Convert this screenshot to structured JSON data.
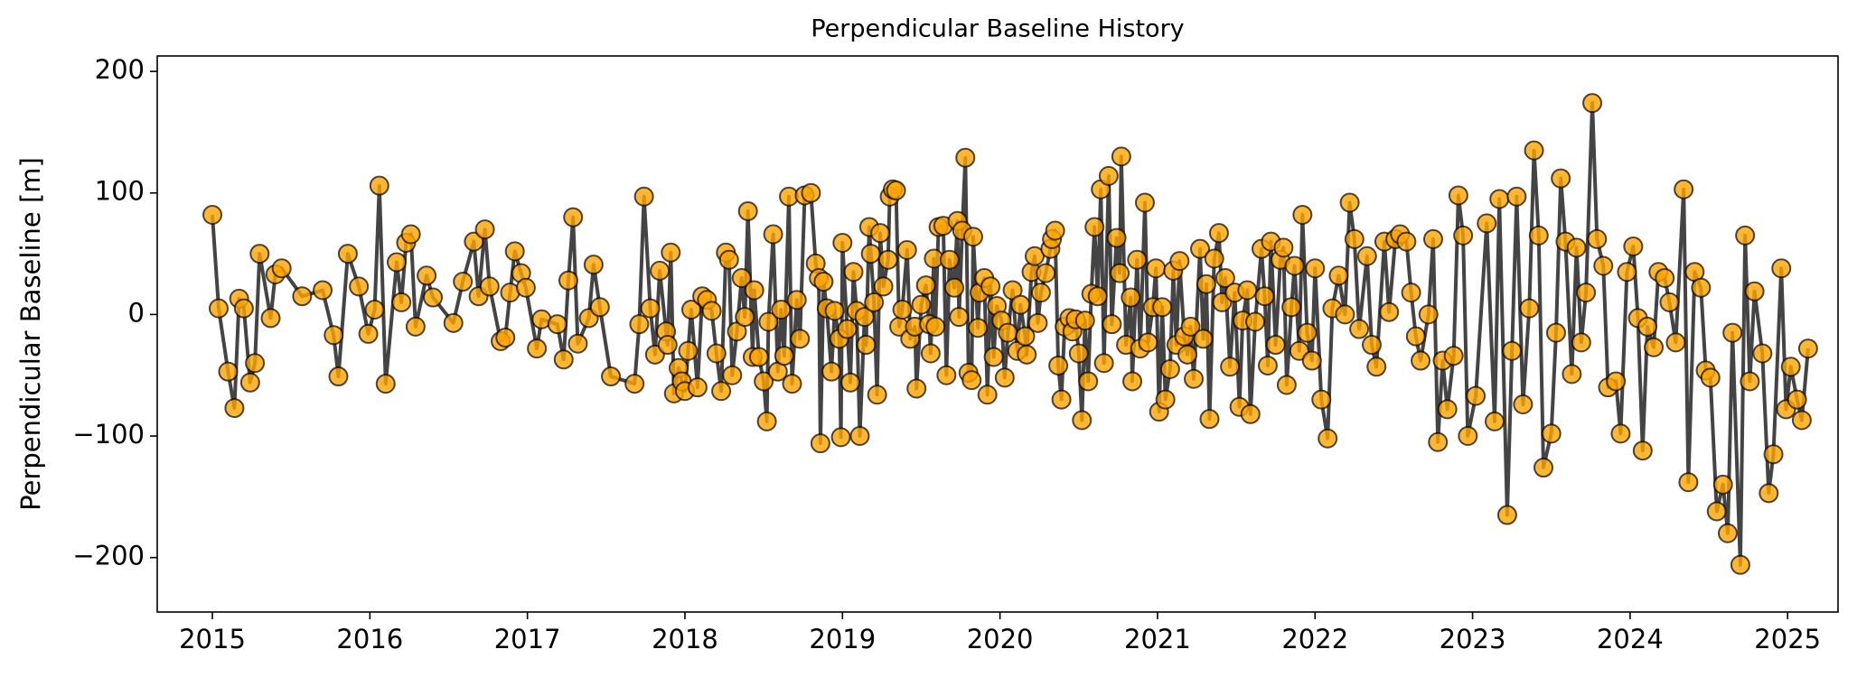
{
  "chart_data": {
    "type": "line",
    "title": "Perpendicular Baseline History",
    "y_label": "Perpendicular Baseline [m]",
    "xlim": [
      2014.65,
      2025.32
    ],
    "xticks": [
      2015,
      2016,
      2017,
      2018,
      2019,
      2020,
      2021,
      2022,
      2023,
      2024,
      2025
    ],
    "ylim": [
      -244.8,
      212.7
    ],
    "yticks": [
      {
        "value": -200,
        "label": "−200"
      },
      {
        "value": -100,
        "label": "−100"
      },
      0,
      100,
      200
    ],
    "series": [
      {
        "line_color": "#444444",
        "marker_color": "#ffa500",
        "x": [
          2015.0,
          2015.04,
          2015.1,
          2015.14,
          2015.17,
          2015.2,
          2015.24,
          2015.27,
          2015.3,
          2015.37,
          2015.4,
          2015.44,
          2015.57,
          2015.7,
          2015.77,
          2015.8,
          2015.86,
          2015.93,
          2015.99,
          2016.03,
          2016.06,
          2016.1,
          2016.17,
          2016.2,
          2016.23,
          2016.26,
          2016.29,
          2016.36,
          2016.4,
          2016.53,
          2016.59,
          2016.66,
          2016.69,
          2016.73,
          2016.76,
          2016.83,
          2016.86,
          2016.89,
          2016.92,
          2016.96,
          2016.99,
          2017.06,
          2017.09,
          2017.19,
          2017.23,
          2017.26,
          2017.29,
          2017.32,
          2017.39,
          2017.42,
          2017.46,
          2017.53,
          2017.68,
          2017.71,
          2017.74,
          2017.78,
          2017.81,
          2017.84,
          2017.88,
          2017.89,
          2017.91,
          2017.93,
          2017.96,
          2017.98,
          2018.0,
          2018.02,
          2018.04,
          2018.08,
          2018.11,
          2018.14,
          2018.17,
          2018.2,
          2018.23,
          2018.26,
          2018.28,
          2018.3,
          2018.33,
          2018.36,
          2018.38,
          2018.4,
          2018.43,
          2018.44,
          2018.47,
          2018.5,
          2018.52,
          2018.53,
          2018.56,
          2018.59,
          2018.61,
          2018.63,
          2018.66,
          2018.68,
          2018.71,
          2018.73,
          2018.76,
          2018.8,
          2018.83,
          2018.85,
          2018.86,
          2018.88,
          2018.9,
          2018.93,
          2018.95,
          2018.98,
          2018.99,
          2019.0,
          2019.03,
          2019.05,
          2019.07,
          2019.09,
          2019.11,
          2019.14,
          2019.15,
          2019.17,
          2019.18,
          2019.2,
          2019.22,
          2019.24,
          2019.26,
          2019.29,
          2019.3,
          2019.32,
          2019.34,
          2019.36,
          2019.38,
          2019.41,
          2019.43,
          2019.46,
          2019.47,
          2019.5,
          2019.53,
          2019.55,
          2019.56,
          2019.58,
          2019.59,
          2019.61,
          2019.64,
          2019.66,
          2019.68,
          2019.71,
          2019.73,
          2019.74,
          2019.76,
          2019.78,
          2019.8,
          2019.82,
          2019.83,
          2019.86,
          2019.87,
          2019.9,
          2019.92,
          2019.94,
          2019.96,
          2019.98,
          2020.01,
          2020.03,
          2020.05,
          2020.08,
          2020.11,
          2020.13,
          2020.16,
          2020.17,
          2020.2,
          2020.22,
          2020.24,
          2020.26,
          2020.29,
          2020.32,
          2020.33,
          2020.35,
          2020.37,
          2020.39,
          2020.41,
          2020.44,
          2020.46,
          2020.48,
          2020.5,
          2020.52,
          2020.54,
          2020.56,
          2020.58,
          2020.6,
          2020.62,
          2020.64,
          2020.66,
          2020.69,
          2020.71,
          2020.74,
          2020.76,
          2020.77,
          2020.8,
          2020.83,
          2020.84,
          2020.87,
          2020.89,
          2020.92,
          2020.94,
          2020.97,
          2020.99,
          2021.01,
          2021.03,
          2021.05,
          2021.08,
          2021.1,
          2021.12,
          2021.14,
          2021.17,
          2021.19,
          2021.21,
          2021.23,
          2021.27,
          2021.29,
          2021.31,
          2021.33,
          2021.36,
          2021.39,
          2021.41,
          2021.43,
          2021.46,
          2021.49,
          2021.52,
          2021.54,
          2021.57,
          2021.59,
          2021.62,
          2021.66,
          2021.68,
          2021.7,
          2021.72,
          2021.75,
          2021.78,
          2021.8,
          2021.82,
          2021.85,
          2021.87,
          2021.9,
          2021.92,
          2021.95,
          2021.98,
          2022.0,
          2022.04,
          2022.08,
          2022.11,
          2022.15,
          2022.19,
          2022.22,
          2022.25,
          2022.28,
          2022.33,
          2022.36,
          2022.39,
          2022.44,
          2022.47,
          2022.51,
          2022.54,
          2022.58,
          2022.61,
          2022.64,
          2022.67,
          2022.72,
          2022.75,
          2022.78,
          2022.81,
          2022.84,
          2022.88,
          2022.91,
          2022.94,
          2022.97,
          2023.02,
          2023.09,
          2023.14,
          2023.17,
          2023.22,
          2023.25,
          2023.28,
          2023.32,
          2023.36,
          2023.39,
          2023.42,
          2023.45,
          2023.5,
          2023.53,
          2023.56,
          2023.59,
          2023.63,
          2023.66,
          2023.69,
          2023.72,
          2023.76,
          2023.79,
          2023.83,
          2023.86,
          2023.91,
          2023.94,
          2023.98,
          2024.02,
          2024.05,
          2024.08,
          2024.11,
          2024.15,
          2024.18,
          2024.22,
          2024.25,
          2024.29,
          2024.34,
          2024.37,
          2024.41,
          2024.45,
          2024.48,
          2024.51,
          2024.55,
          2024.59,
          2024.62,
          2024.65,
          2024.7,
          2024.73,
          2024.76,
          2024.79,
          2024.84,
          2024.88,
          2024.91,
          2024.96,
          2024.99,
          2025.02,
          2025.06,
          2025.09,
          2025.13
        ],
        "values": [
          82,
          5,
          -47,
          -77,
          13,
          5,
          -56,
          -40,
          50,
          -3,
          33,
          38,
          15,
          20,
          -17,
          -51,
          50,
          23,
          -16,
          4,
          106,
          -57,
          43,
          10,
          59,
          66,
          -10,
          32,
          14,
          -7,
          27,
          60,
          15,
          70,
          23,
          -22,
          -19,
          18,
          52,
          34,
          22,
          -28,
          -4,
          -8,
          -37,
          28,
          80,
          -24,
          -3,
          41,
          6,
          -51,
          -57,
          -8,
          97,
          5,
          -33,
          36,
          -14,
          -25,
          51,
          -65,
          -44,
          -55,
          -63,
          -30,
          4,
          -60,
          15,
          12,
          3,
          -32,
          -63,
          51,
          45,
          -50,
          -14,
          30,
          -2,
          85,
          -35,
          20,
          -35,
          -55,
          -88,
          -6,
          66,
          -47,
          4,
          -34,
          97,
          -57,
          12,
          -20,
          98,
          100,
          42,
          30,
          -106,
          27,
          5,
          -47,
          3,
          -20,
          -101,
          59,
          -12,
          -56,
          35,
          3,
          -100,
          -2,
          -25,
          72,
          50,
          10,
          -66,
          67,
          23,
          45,
          97,
          103,
          102,
          -10,
          4,
          53,
          -20,
          -10,
          -61,
          8,
          24,
          -8,
          -32,
          46,
          -10,
          72,
          73,
          -50,
          45,
          22,
          77,
          -2,
          69,
          129,
          -48,
          -54,
          64,
          -11,
          18,
          30,
          -66,
          23,
          -35,
          7,
          -5,
          -52,
          -15,
          20,
          -30,
          8,
          -18,
          -33,
          35,
          48,
          -7,
          18,
          34,
          54,
          62,
          69,
          -42,
          -70,
          -10,
          -3,
          -14,
          -4,
          -32,
          -87,
          -5,
          -55,
          17,
          72,
          15,
          103,
          -40,
          114,
          -8,
          63,
          34,
          130,
          -25,
          14,
          -55,
          45,
          -28,
          92,
          -23,
          6,
          38,
          -80,
          6,
          -70,
          -45,
          36,
          -25,
          44,
          -18,
          -33,
          -10,
          -53,
          54,
          -20,
          25,
          -86,
          46,
          67,
          10,
          30,
          -43,
          18,
          -76,
          -5,
          20,
          -82,
          -6,
          54,
          15,
          -42,
          60,
          -25,
          45,
          55,
          -58,
          6,
          40,
          -30,
          82,
          -15,
          -38,
          38,
          -70,
          -102,
          5,
          32,
          0,
          92,
          62,
          -12,
          48,
          -25,
          -43,
          60,
          2,
          62,
          66,
          60,
          18,
          -18,
          -38,
          0,
          62,
          -105,
          -38,
          -78,
          -34,
          98,
          65,
          -100,
          -67,
          75,
          -88,
          95,
          -165,
          -30,
          97,
          -74,
          5,
          135,
          65,
          -126,
          -98,
          -15,
          112,
          60,
          -49,
          55,
          -23,
          18,
          174,
          62,
          40,
          -60,
          -55,
          -98,
          35,
          56,
          -3,
          -112,
          -10,
          -27,
          35,
          30,
          10,
          -23,
          103,
          -138,
          35,
          22,
          -46,
          -52,
          -162,
          -140,
          -180,
          -15,
          -206,
          65,
          -55,
          19,
          -32,
          -147,
          -115,
          38,
          -78,
          -43,
          -70,
          -87,
          -28
        ]
      }
    ]
  }
}
